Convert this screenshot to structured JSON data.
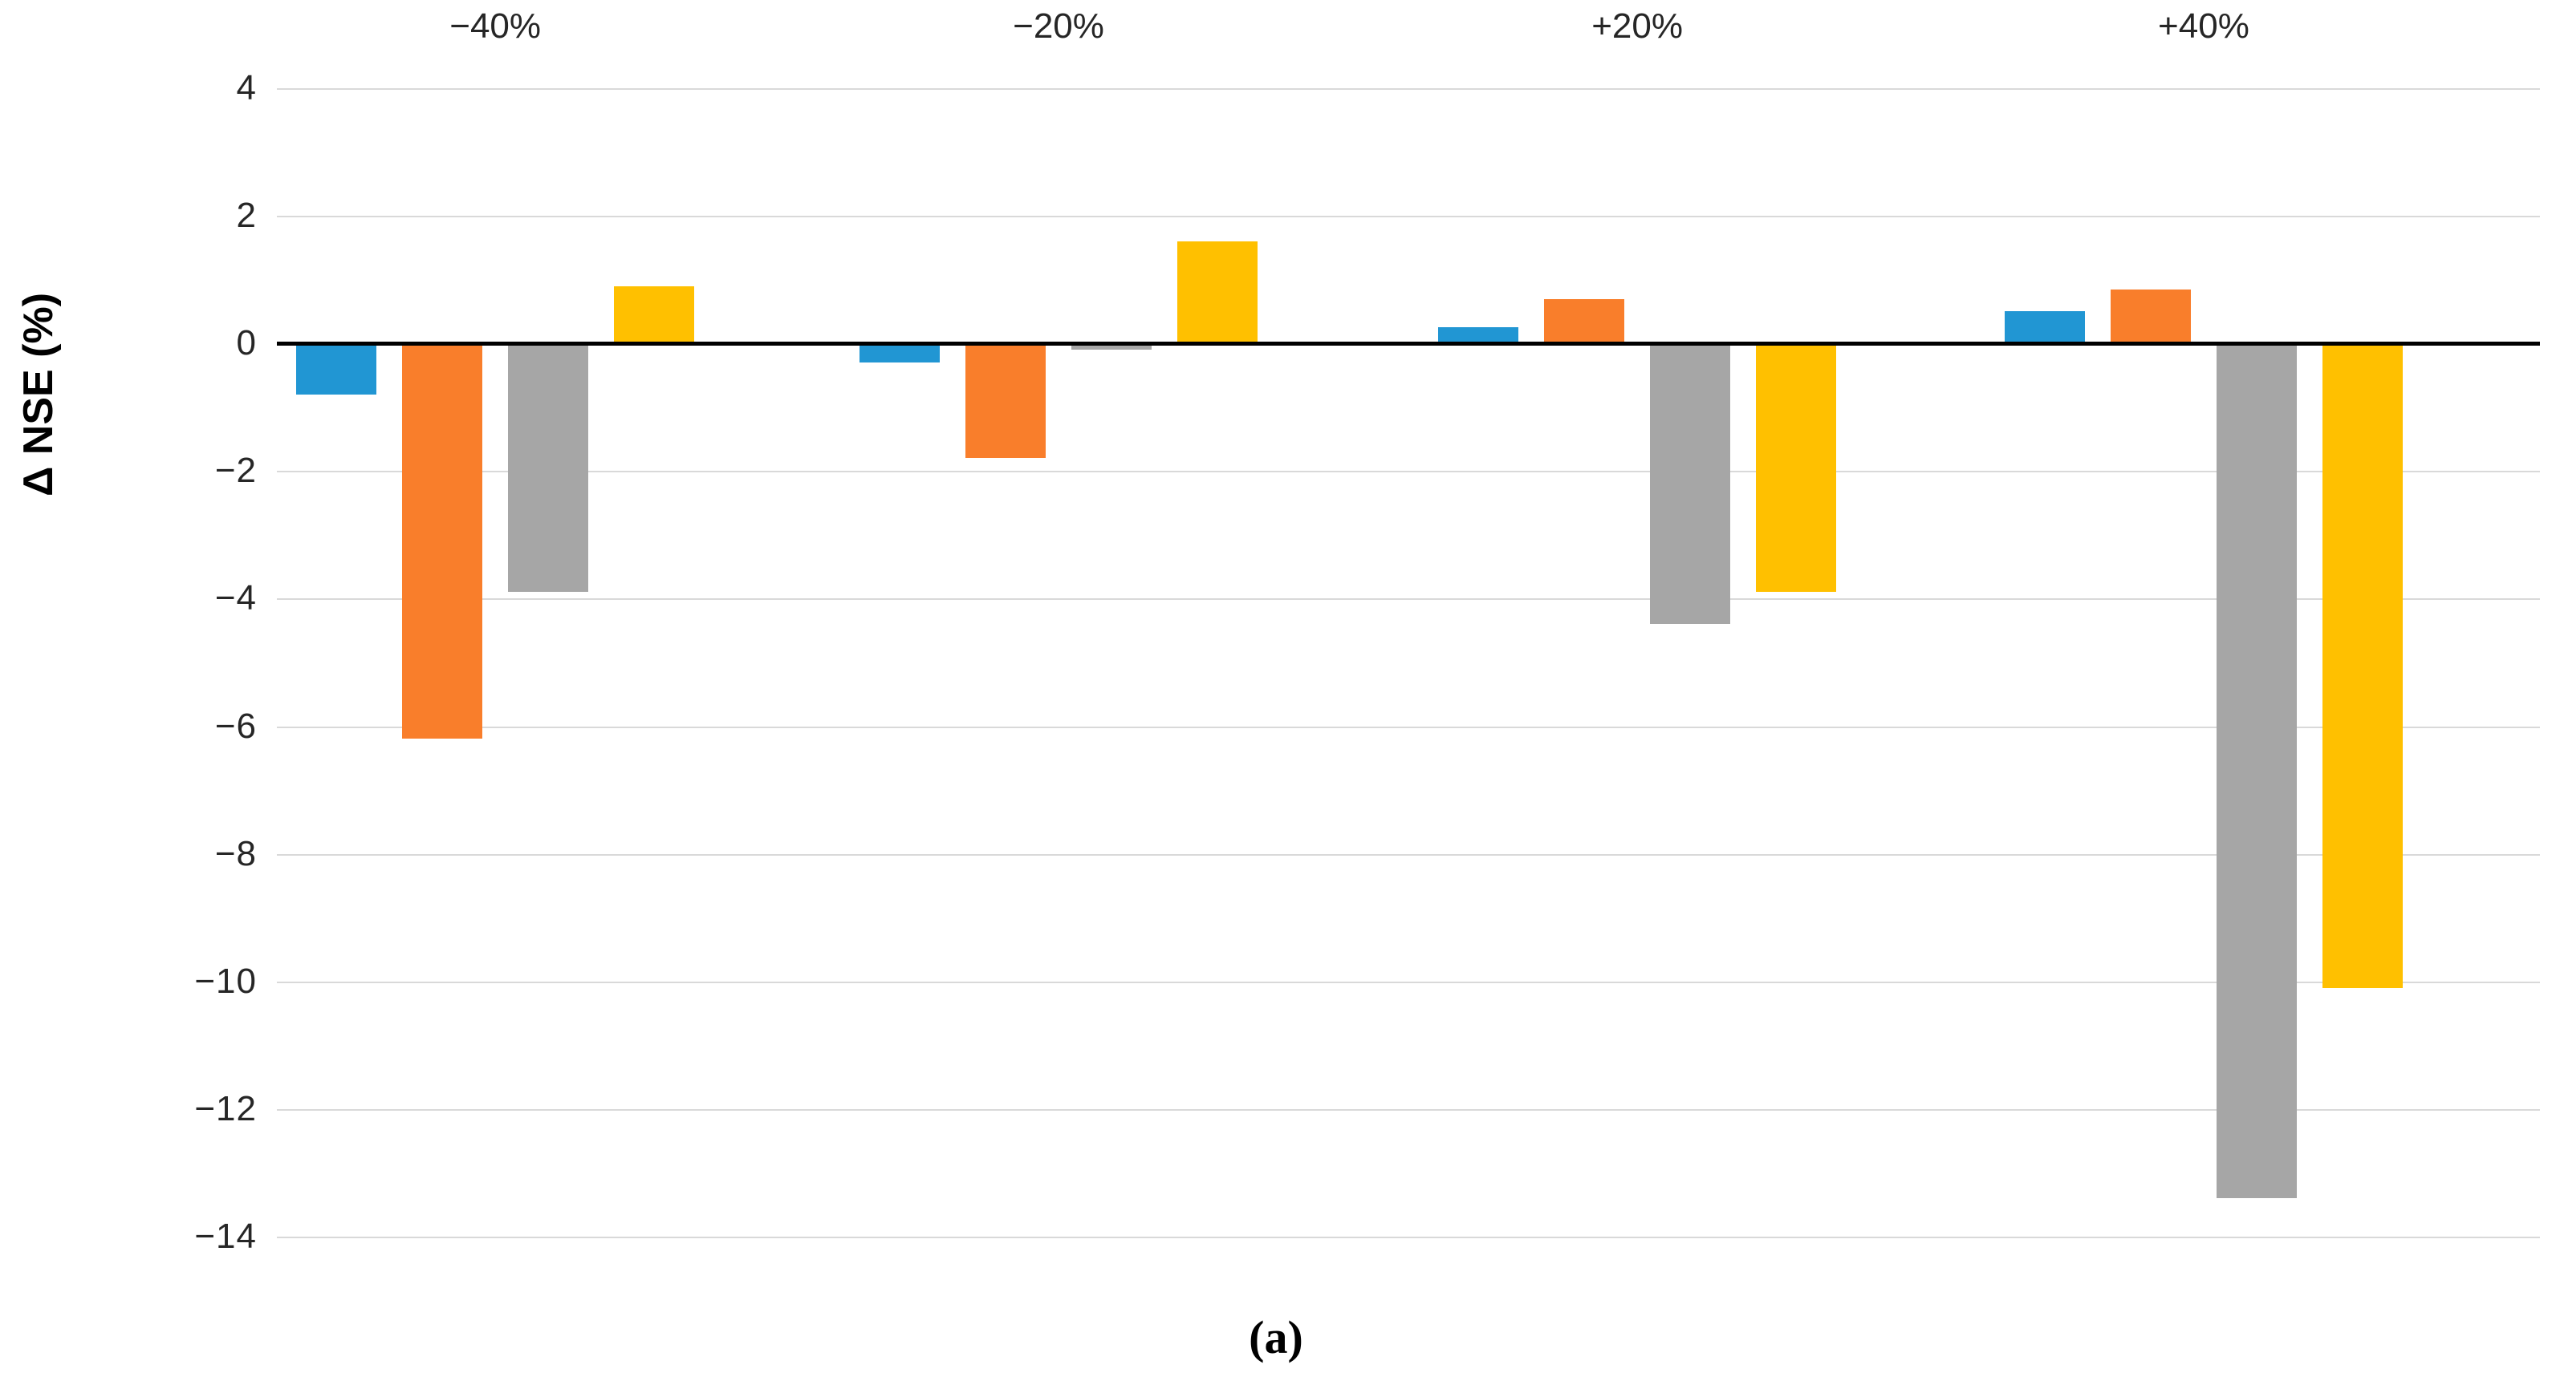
{
  "figure": {
    "caption": "(a)"
  },
  "y_axis": {
    "title": "Δ NSE (%)",
    "tick_labels": [
      "4",
      "2",
      "0",
      "−2",
      "−4",
      "−6",
      "−8",
      "−10",
      "−12",
      "−14"
    ],
    "tick_values": [
      4,
      2,
      0,
      -2,
      -4,
      -6,
      -8,
      -10,
      -12,
      -14
    ]
  },
  "chart_data": {
    "type": "bar",
    "title": "",
    "xlabel": "",
    "ylabel": "Δ NSE (%)",
    "categories": [
      "−40%",
      "−20%",
      "+20%",
      "+40%"
    ],
    "category_position": "top",
    "series": [
      {
        "name": "series-blue",
        "color": "#2196d3",
        "values": [
          -0.8,
          -0.3,
          0.25,
          0.5
        ]
      },
      {
        "name": "series-orange",
        "color": "#f97e2b",
        "values": [
          -6.2,
          -1.8,
          0.7,
          0.85
        ]
      },
      {
        "name": "series-gray",
        "color": "#a6a6a6",
        "values": [
          -3.9,
          -0.1,
          -4.4,
          -13.4
        ]
      },
      {
        "name": "series-yellow",
        "color": "#ffc000",
        "values": [
          0.9,
          1.6,
          -3.9,
          -10.1
        ]
      }
    ],
    "ylim": [
      -14,
      4
    ],
    "grid": true,
    "legend": false,
    "group_center_pct": [
      9.65,
      34.54,
      60.11,
      85.14
    ],
    "colors": {
      "gridline": "#d9d9d9",
      "zero_axis": "#000000",
      "text": "#262626"
    }
  }
}
